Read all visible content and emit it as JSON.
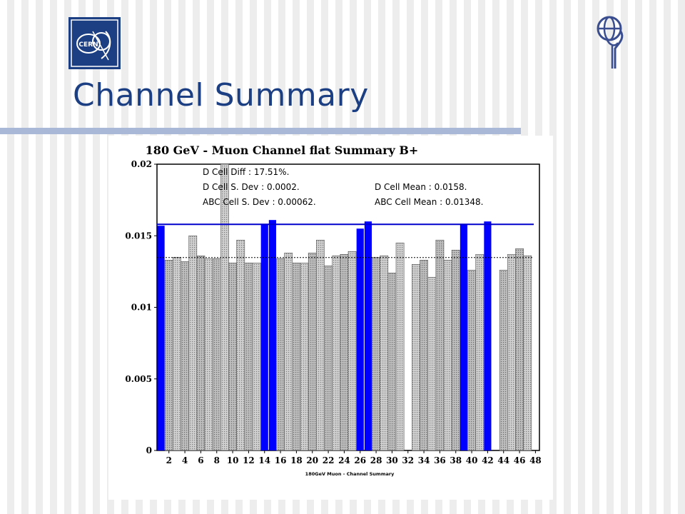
{
  "slide": {
    "title": "Channel Summary",
    "logos": {
      "cern_text": "CERN"
    }
  },
  "colors": {
    "title": "#1b3f82",
    "highlight_bar": "#0000ff",
    "mean_line": "#0000cc",
    "grey_bar": "#c8c8c8"
  },
  "chart_data": {
    "type": "bar",
    "title": "180 GeV - Muon Channel flat Summary B+",
    "xlabel": "180GeV Muon - Channel Summary",
    "ylabel": "",
    "ylim": [
      0,
      0.02
    ],
    "yticks": [
      "0",
      "0.005",
      "0.01",
      "0.015",
      "0.02"
    ],
    "xticks": [
      "2",
      "4",
      "6",
      "8",
      "10",
      "12",
      "14",
      "16",
      "18",
      "20",
      "22",
      "24",
      "26",
      "28",
      "30",
      "32",
      "34",
      "36",
      "38",
      "40",
      "42",
      "44",
      "46",
      "48"
    ],
    "x": [
      1,
      2,
      3,
      4,
      5,
      6,
      7,
      8,
      9,
      10,
      11,
      12,
      13,
      14,
      15,
      16,
      17,
      18,
      19,
      20,
      21,
      22,
      23,
      24,
      25,
      26,
      27,
      28,
      29,
      30,
      31,
      32,
      33,
      34,
      35,
      36,
      37,
      38,
      39,
      40,
      41,
      42,
      43,
      44,
      45,
      46,
      47,
      48
    ],
    "values": [
      0.0157,
      0.0133,
      0.0135,
      0.0132,
      0.015,
      0.0136,
      0.0134,
      0.0134,
      0.02,
      0.0131,
      0.0147,
      0.0131,
      0.0131,
      0.0158,
      0.0161,
      0.0134,
      0.0138,
      0.0131,
      0.0131,
      0.0138,
      0.0147,
      0.0129,
      0.0136,
      0.0137,
      0.0139,
      0.0155,
      0.016,
      0.0135,
      0.0136,
      0.0124,
      0.0145,
      0.0,
      0.013,
      0.0133,
      0.0121,
      0.0147,
      0.0133,
      0.014,
      0.0158,
      0.0126,
      0.0137,
      0.016,
      0.0,
      0.0126,
      0.0137,
      0.0141,
      0.0136,
      0.0
    ],
    "highlight_channels": [
      1,
      14,
      15,
      26,
      27,
      39,
      42
    ],
    "d_cell_mean": 0.0158,
    "abc_cell_mean": 0.01348,
    "stats": {
      "d_diff": "D Cell Diff : 17.51%.",
      "d_sdev": "D Cell S. Dev : 0.0002.",
      "abc_sdev": "ABC Cell S. Dev : 0.00062.",
      "d_mean": "D Cell Mean : 0.0158.",
      "abc_mean": "ABC Cell Mean : 0.01348."
    },
    "grid": false,
    "legend": "none"
  }
}
